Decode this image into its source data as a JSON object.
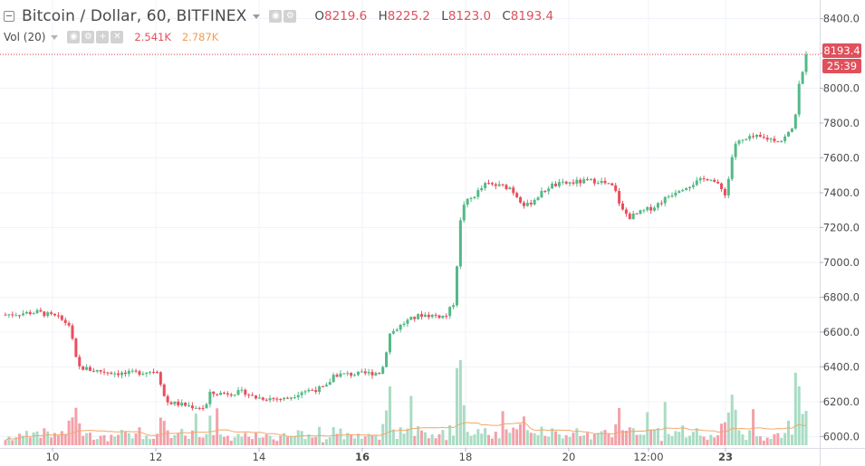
{
  "legend": {
    "symbol_title": "Bitcoin / Dollar, 60, BITFINEX",
    "ohlc": {
      "o_label": "O",
      "o": "8219.6",
      "h_label": "H",
      "h": "8225.2",
      "l_label": "L",
      "l": "8123.0",
      "c_label": "C",
      "c": "8193.4"
    },
    "volume": {
      "label": "Vol (20)",
      "value": "2.541K",
      "ma": "2.787K"
    }
  },
  "price_tags": {
    "last_price": "8193.4",
    "countdown": "25:39"
  },
  "colors": {
    "up": "#53b987",
    "down": "#eb4d5c",
    "volume_up": "#a9dcc3",
    "volume_down": "#f3a1a8",
    "volume_ma": "#f1a86c",
    "last_price": "#e0505c",
    "grid": "#f0f3fa",
    "axis_text": "#4a4a4a"
  },
  "chart_data": {
    "type": "candlestick",
    "interval": "60",
    "y_ticks": [
      "8400.0",
      "8200.0",
      "8000.0",
      "7800.0",
      "7600.0",
      "7400.0",
      "7200.0",
      "7000.0",
      "6800.0",
      "6600.0",
      "6400.0",
      "6200.0",
      "6000.0"
    ],
    "ylim": [
      5950,
      8450
    ],
    "x_ticks": [
      "10",
      "12",
      "14",
      "16",
      "18",
      "20",
      "12:00",
      "23"
    ],
    "x_ticks_bold": [
      "16",
      "23"
    ],
    "last_price": 8193.4,
    "price_path": [
      {
        "x": 0.0,
        "y": 6700
      },
      {
        "x": 0.04,
        "y": 6715
      },
      {
        "x": 0.065,
        "y": 6685
      },
      {
        "x": 0.08,
        "y": 6640
      },
      {
        "x": 0.09,
        "y": 6400
      },
      {
        "x": 0.11,
        "y": 6380
      },
      {
        "x": 0.15,
        "y": 6360
      },
      {
        "x": 0.19,
        "y": 6380
      },
      {
        "x": 0.2,
        "y": 6200
      },
      {
        "x": 0.23,
        "y": 6175
      },
      {
        "x": 0.25,
        "y": 6165
      },
      {
        "x": 0.255,
        "y": 6245
      },
      {
        "x": 0.3,
        "y": 6255
      },
      {
        "x": 0.31,
        "y": 6225
      },
      {
        "x": 0.35,
        "y": 6215
      },
      {
        "x": 0.37,
        "y": 6260
      },
      {
        "x": 0.4,
        "y": 6280
      },
      {
        "x": 0.41,
        "y": 6355
      },
      {
        "x": 0.445,
        "y": 6360
      },
      {
        "x": 0.47,
        "y": 6370
      },
      {
        "x": 0.48,
        "y": 6590
      },
      {
        "x": 0.5,
        "y": 6660
      },
      {
        "x": 0.52,
        "y": 6700
      },
      {
        "x": 0.55,
        "y": 6690
      },
      {
        "x": 0.56,
        "y": 6770
      },
      {
        "x": 0.57,
        "y": 7330
      },
      {
        "x": 0.58,
        "y": 7360
      },
      {
        "x": 0.6,
        "y": 7450
      },
      {
        "x": 0.63,
        "y": 7430
      },
      {
        "x": 0.65,
        "y": 7320
      },
      {
        "x": 0.68,
        "y": 7440
      },
      {
        "x": 0.71,
        "y": 7460
      },
      {
        "x": 0.74,
        "y": 7470
      },
      {
        "x": 0.76,
        "y": 7430
      },
      {
        "x": 0.77,
        "y": 7300
      },
      {
        "x": 0.78,
        "y": 7260
      },
      {
        "x": 0.81,
        "y": 7320
      },
      {
        "x": 0.84,
        "y": 7420
      },
      {
        "x": 0.88,
        "y": 7490
      },
      {
        "x": 0.9,
        "y": 7390
      },
      {
        "x": 0.91,
        "y": 7680
      },
      {
        "x": 0.935,
        "y": 7720
      },
      {
        "x": 0.97,
        "y": 7700
      },
      {
        "x": 0.985,
        "y": 7780
      },
      {
        "x": 0.99,
        "y": 8000
      },
      {
        "x": 1.0,
        "y": 8150
      }
    ]
  }
}
